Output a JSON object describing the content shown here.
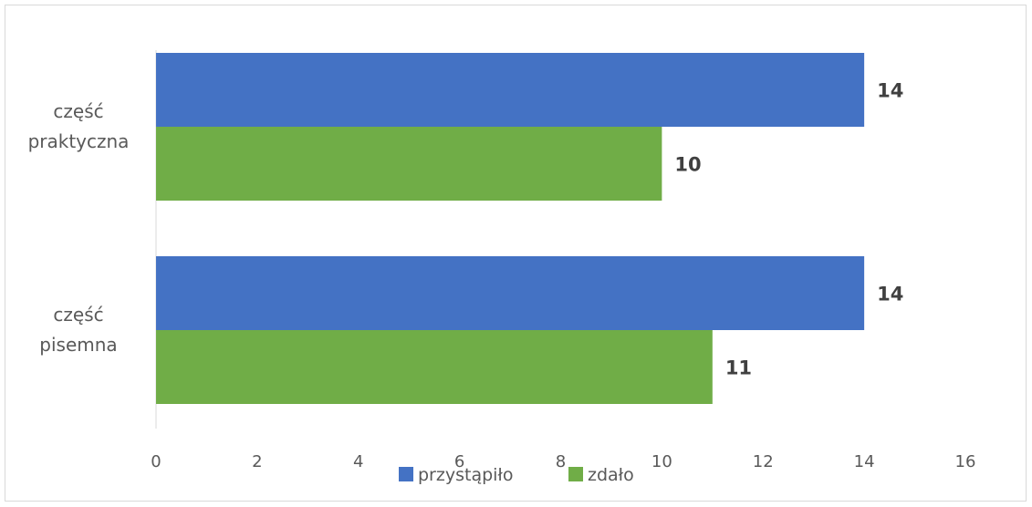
{
  "chart_data": {
    "type": "bar",
    "orientation": "horizontal",
    "categories": [
      "część praktyczna",
      "część pisemna"
    ],
    "category_lines": [
      [
        "część",
        "praktyczna"
      ],
      [
        "część",
        "pisemna"
      ]
    ],
    "series": [
      {
        "name": "przystąpiło",
        "color": "#4472c4",
        "values": [
          14,
          14
        ]
      },
      {
        "name": "zdało",
        "color": "#70ad47",
        "values": [
          10,
          11
        ]
      }
    ],
    "xlim": [
      0,
      16
    ],
    "x_ticks": [
      "0",
      "2",
      "4",
      "6",
      "8",
      "10",
      "12",
      "14",
      "16"
    ],
    "grid": false,
    "legend_position": "bottom"
  }
}
